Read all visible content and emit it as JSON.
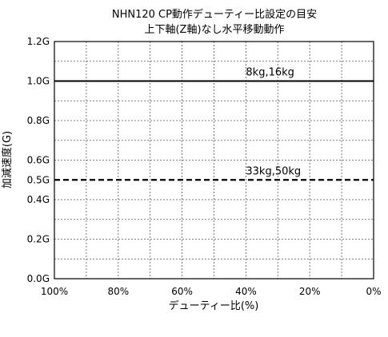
{
  "chart_data": {
    "type": "line",
    "title": "NHN120 CP動作デューティー比設定の目安",
    "subtitle": "上下軸(Z軸)なし水平移動動作",
    "xlabel": "デューティー比(%)",
    "ylabel": "加減速度(G)",
    "xlim": [
      100,
      0
    ],
    "ylim": [
      0,
      1.2
    ],
    "x_ticks": [
      100,
      80,
      60,
      40,
      20,
      0
    ],
    "x_tick_labels": [
      "100%",
      "80%",
      "60%",
      "40%",
      "20%",
      "0%"
    ],
    "x_grid": [
      100,
      90,
      80,
      70,
      60,
      50,
      40,
      30,
      20,
      10,
      0
    ],
    "y_ticks": [
      0,
      0.2,
      0.4,
      0.5,
      0.6,
      0.8,
      1.0,
      1.2
    ],
    "y_tick_labels": [
      "0.0G",
      "0.2G",
      "0.4G",
      "0.5G",
      "0.6G",
      "0.8G",
      "1.0G",
      "1.2G"
    ],
    "y_grid": [
      0.1,
      0.2,
      0.3,
      0.4,
      0.6,
      0.7,
      0.8,
      0.9,
      1.1
    ],
    "grid": true,
    "series": [
      {
        "name": "8kg,16kg",
        "x": [
          100,
          0
        ],
        "y": [
          1.0,
          1.0
        ],
        "style": "solid"
      },
      {
        "name": "33kg,50kg",
        "x": [
          100,
          0
        ],
        "y": [
          0.5,
          0.5
        ],
        "style": "dashed"
      }
    ]
  }
}
